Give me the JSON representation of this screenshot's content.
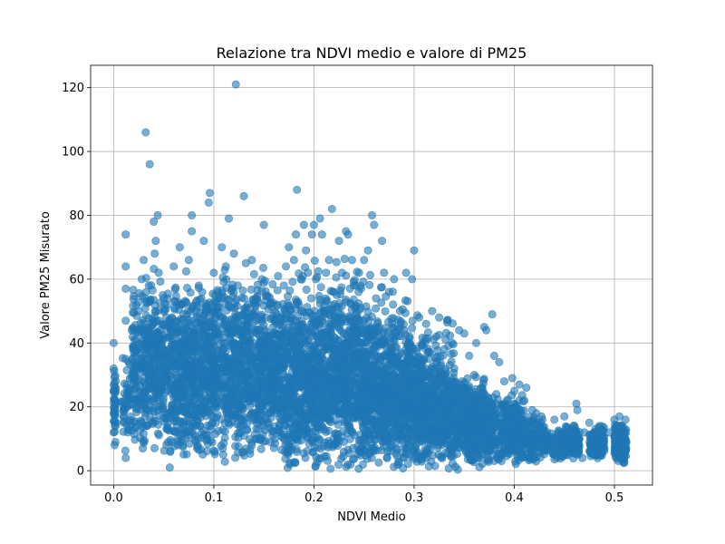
{
  "chart_data": {
    "type": "scatter",
    "title": "Relazione tra NDVI medio e valore di PM25",
    "xlabel": "NDVI Medio",
    "ylabel": "Valore PM25 Misurato",
    "xlim": [
      -0.023,
      0.538
    ],
    "ylim": [
      -4.5,
      127
    ],
    "xticks": [
      0.0,
      0.1,
      0.2,
      0.3,
      0.4,
      0.5
    ],
    "xtick_labels": [
      "0.0",
      "0.1",
      "0.2",
      "0.3",
      "0.4",
      "0.5"
    ],
    "yticks": [
      0,
      20,
      40,
      60,
      80,
      100,
      120
    ],
    "ytick_labels": [
      "0",
      "20",
      "40",
      "60",
      "80",
      "100",
      "120"
    ],
    "grid": true,
    "marker_color": "#1f77b4",
    "marker_alpha": 0.6,
    "points": [
      [
        0.0,
        40
      ],
      [
        0.0,
        32
      ],
      [
        0.0,
        25
      ],
      [
        0.0,
        18
      ],
      [
        0.0,
        12
      ],
      [
        0.001,
        8
      ],
      [
        0.002,
        28
      ],
      [
        0.003,
        15
      ],
      [
        0.012,
        74
      ],
      [
        0.012,
        64
      ],
      [
        0.012,
        57
      ],
      [
        0.012,
        47
      ],
      [
        0.012,
        35
      ],
      [
        0.012,
        4
      ],
      [
        0.013,
        20
      ],
      [
        0.014,
        12
      ],
      [
        0.02,
        38
      ],
      [
        0.022,
        22
      ],
      [
        0.025,
        50
      ],
      [
        0.028,
        60
      ],
      [
        0.03,
        66
      ],
      [
        0.031,
        44
      ],
      [
        0.032,
        106
      ],
      [
        0.033,
        14
      ],
      [
        0.035,
        58
      ],
      [
        0.036,
        96
      ],
      [
        0.038,
        30
      ],
      [
        0.04,
        78
      ],
      [
        0.041,
        68
      ],
      [
        0.042,
        72
      ],
      [
        0.044,
        80
      ],
      [
        0.045,
        62
      ],
      [
        0.046,
        36
      ],
      [
        0.048,
        26
      ],
      [
        0.05,
        54
      ],
      [
        0.052,
        18
      ],
      [
        0.055,
        42
      ],
      [
        0.056,
        1
      ],
      [
        0.058,
        48
      ],
      [
        0.06,
        64
      ],
      [
        0.062,
        32
      ],
      [
        0.064,
        8
      ],
      [
        0.066,
        70
      ],
      [
        0.068,
        52
      ],
      [
        0.07,
        24
      ],
      [
        0.072,
        38
      ],
      [
        0.075,
        66
      ],
      [
        0.078,
        80
      ],
      [
        0.078,
        75
      ],
      [
        0.08,
        44
      ],
      [
        0.082,
        14
      ],
      [
        0.085,
        58
      ],
      [
        0.088,
        28
      ],
      [
        0.09,
        72
      ],
      [
        0.092,
        50
      ],
      [
        0.095,
        84
      ],
      [
        0.096,
        87
      ],
      [
        0.098,
        40
      ],
      [
        0.1,
        62
      ],
      [
        0.102,
        20
      ],
      [
        0.105,
        54
      ],
      [
        0.108,
        70
      ],
      [
        0.11,
        34
      ],
      [
        0.112,
        64
      ],
      [
        0.115,
        79
      ],
      [
        0.117,
        46
      ],
      [
        0.12,
        68
      ],
      [
        0.122,
        121
      ],
      [
        0.124,
        58
      ],
      [
        0.126,
        12
      ],
      [
        0.128,
        30
      ],
      [
        0.13,
        86
      ],
      [
        0.132,
        65
      ],
      [
        0.134,
        52
      ],
      [
        0.136,
        24
      ],
      [
        0.138,
        66
      ],
      [
        0.14,
        44
      ],
      [
        0.142,
        10
      ],
      [
        0.145,
        38
      ],
      [
        0.148,
        60
      ],
      [
        0.15,
        77
      ],
      [
        0.152,
        48
      ],
      [
        0.155,
        18
      ],
      [
        0.158,
        30
      ],
      [
        0.17,
        58
      ],
      [
        0.172,
        64
      ],
      [
        0.175,
        70
      ],
      [
        0.178,
        40
      ],
      [
        0.18,
        66
      ],
      [
        0.182,
        74
      ],
      [
        0.183,
        88
      ],
      [
        0.185,
        52
      ],
      [
        0.188,
        28
      ],
      [
        0.19,
        77
      ],
      [
        0.192,
        69
      ],
      [
        0.195,
        44
      ],
      [
        0.198,
        74
      ],
      [
        0.2,
        77
      ],
      [
        0.202,
        60
      ],
      [
        0.204,
        36
      ],
      [
        0.206,
        79
      ],
      [
        0.208,
        74
      ],
      [
        0.21,
        50
      ],
      [
        0.212,
        62
      ],
      [
        0.215,
        66
      ],
      [
        0.218,
        82
      ],
      [
        0.22,
        56
      ],
      [
        0.222,
        40
      ],
      [
        0.225,
        72
      ],
      [
        0.228,
        62
      ],
      [
        0.23,
        30
      ],
      [
        0.232,
        75
      ],
      [
        0.234,
        74
      ],
      [
        0.236,
        48
      ],
      [
        0.238,
        66
      ],
      [
        0.24,
        20
      ],
      [
        0.242,
        58
      ],
      [
        0.245,
        62
      ],
      [
        0.248,
        36
      ],
      [
        0.25,
        66
      ],
      [
        0.252,
        44
      ],
      [
        0.254,
        69
      ],
      [
        0.256,
        26
      ],
      [
        0.258,
        80
      ],
      [
        0.26,
        77
      ],
      [
        0.262,
        54
      ],
      [
        0.265,
        40
      ],
      [
        0.268,
        72
      ],
      [
        0.27,
        62
      ],
      [
        0.272,
        30
      ],
      [
        0.275,
        56
      ],
      [
        0.278,
        46
      ],
      [
        0.28,
        60
      ],
      [
        0.283,
        20
      ],
      [
        0.286,
        50
      ],
      [
        0.29,
        44
      ],
      [
        0.292,
        62
      ],
      [
        0.295,
        36
      ],
      [
        0.298,
        60
      ],
      [
        0.3,
        69
      ],
      [
        0.302,
        28
      ],
      [
        0.305,
        48
      ],
      [
        0.308,
        40
      ],
      [
        0.31,
        22
      ],
      [
        0.312,
        46
      ],
      [
        0.315,
        35
      ],
      [
        0.318,
        50
      ],
      [
        0.32,
        14
      ],
      [
        0.322,
        42
      ],
      [
        0.325,
        48
      ],
      [
        0.328,
        30
      ],
      [
        0.33,
        38
      ],
      [
        0.332,
        12
      ],
      [
        0.335,
        24
      ],
      [
        0.338,
        40
      ],
      [
        0.34,
        32
      ],
      [
        0.342,
        18
      ],
      [
        0.345,
        44
      ],
      [
        0.348,
        28
      ],
      [
        0.35,
        43
      ],
      [
        0.352,
        8
      ],
      [
        0.355,
        36
      ],
      [
        0.358,
        22
      ],
      [
        0.36,
        30
      ],
      [
        0.362,
        40
      ],
      [
        0.365,
        14
      ],
      [
        0.368,
        26
      ],
      [
        0.37,
        45
      ],
      [
        0.372,
        44
      ],
      [
        0.375,
        18
      ],
      [
        0.378,
        49
      ],
      [
        0.38,
        36
      ],
      [
        0.382,
        24
      ],
      [
        0.385,
        34
      ],
      [
        0.388,
        12
      ],
      [
        0.39,
        28
      ],
      [
        0.392,
        20
      ],
      [
        0.395,
        8
      ],
      [
        0.398,
        29
      ],
      [
        0.4,
        25
      ],
      [
        0.402,
        16
      ],
      [
        0.405,
        27
      ],
      [
        0.408,
        6
      ],
      [
        0.41,
        22
      ],
      [
        0.412,
        26
      ],
      [
        0.415,
        14
      ],
      [
        0.418,
        19
      ],
      [
        0.42,
        4
      ],
      [
        0.422,
        18
      ],
      [
        0.425,
        12
      ],
      [
        0.428,
        16
      ],
      [
        0.43,
        8
      ],
      [
        0.44,
        16
      ],
      [
        0.442,
        10
      ],
      [
        0.445,
        6
      ],
      [
        0.45,
        17
      ],
      [
        0.452,
        12
      ],
      [
        0.455,
        8
      ],
      [
        0.46,
        14
      ],
      [
        0.462,
        21
      ],
      [
        0.463,
        19
      ],
      [
        0.465,
        10
      ],
      [
        0.468,
        4
      ],
      [
        0.47,
        12
      ],
      [
        0.475,
        15
      ],
      [
        0.478,
        8
      ],
      [
        0.48,
        12
      ],
      [
        0.482,
        5
      ],
      [
        0.485,
        14
      ],
      [
        0.488,
        9
      ],
      [
        0.49,
        7
      ],
      [
        0.495,
        12
      ],
      [
        0.5,
        16
      ],
      [
        0.502,
        8
      ],
      [
        0.505,
        17
      ],
      [
        0.507,
        14
      ],
      [
        0.508,
        10
      ],
      [
        0.509,
        4
      ],
      [
        0.51,
        13
      ],
      [
        0.51,
        6
      ],
      [
        0.511,
        16
      ],
      [
        0.512,
        9
      ]
    ],
    "clusters": [
      {
        "x_range": [
          0.0,
          0.002
        ],
        "y_range": [
          8,
          32
        ],
        "count": 35
      },
      {
        "x_range": [
          0.008,
          0.018
        ],
        "y_range": [
          5,
          40
        ],
        "count": 45
      },
      {
        "x_range": [
          0.018,
          0.06
        ],
        "y_range": [
          4,
          58
        ],
        "count": 420
      },
      {
        "x_range": [
          0.018,
          0.06
        ],
        "y_range": [
          20,
          66
        ],
        "count": 60
      },
      {
        "x_range": [
          0.06,
          0.1
        ],
        "y_range": [
          3,
          58
        ],
        "count": 520
      },
      {
        "x_range": [
          0.06,
          0.1
        ],
        "y_range": [
          15,
          68
        ],
        "count": 70
      },
      {
        "x_range": [
          0.1,
          0.16
        ],
        "y_range": [
          2,
          60
        ],
        "count": 720
      },
      {
        "x_range": [
          0.1,
          0.16
        ],
        "y_range": [
          20,
          68
        ],
        "count": 80
      },
      {
        "x_range": [
          0.16,
          0.2
        ],
        "y_range": [
          0,
          55
        ],
        "count": 560
      },
      {
        "x_range": [
          0.16,
          0.2
        ],
        "y_range": [
          30,
          70
        ],
        "count": 60
      },
      {
        "x_range": [
          0.2,
          0.25
        ],
        "y_range": [
          0,
          55
        ],
        "count": 720
      },
      {
        "x_range": [
          0.2,
          0.25
        ],
        "y_range": [
          30,
          68
        ],
        "count": 80
      },
      {
        "x_range": [
          0.25,
          0.3
        ],
        "y_range": [
          0,
          48
        ],
        "count": 720
      },
      {
        "x_range": [
          0.25,
          0.3
        ],
        "y_range": [
          30,
          62
        ],
        "count": 60
      },
      {
        "x_range": [
          0.3,
          0.34
        ],
        "y_range": [
          0,
          38
        ],
        "count": 520
      },
      {
        "x_range": [
          0.3,
          0.34
        ],
        "y_range": [
          25,
          50
        ],
        "count": 50
      },
      {
        "x_range": [
          0.34,
          0.37
        ],
        "y_range": [
          0,
          30
        ],
        "count": 380
      },
      {
        "x_range": [
          0.37,
          0.41
        ],
        "y_range": [
          1,
          25
        ],
        "count": 360
      },
      {
        "x_range": [
          0.41,
          0.43
        ],
        "y_range": [
          2,
          18
        ],
        "count": 120
      },
      {
        "x_range": [
          0.43,
          0.44
        ],
        "y_range": [
          3,
          14
        ],
        "count": 40
      },
      {
        "x_range": [
          0.44,
          0.465
        ],
        "y_range": [
          3,
          15
        ],
        "count": 180
      },
      {
        "x_range": [
          0.475,
          0.49
        ],
        "y_range": [
          3,
          14
        ],
        "count": 160
      },
      {
        "x_range": [
          0.5,
          0.512
        ],
        "y_range": [
          2,
          15
        ],
        "count": 180
      }
    ]
  }
}
